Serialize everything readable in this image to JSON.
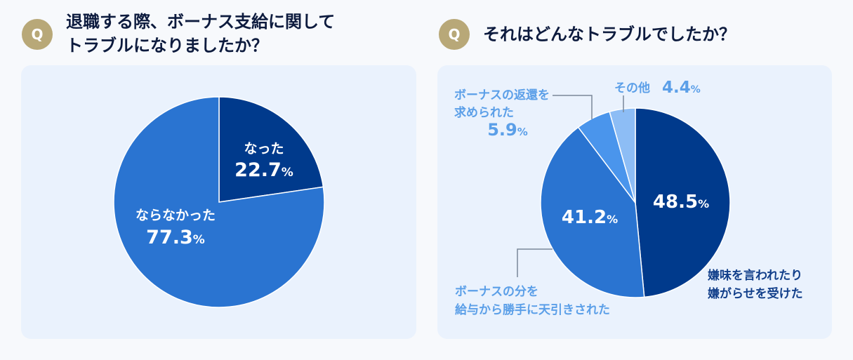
{
  "colors": {
    "badge": "#b8a878",
    "title": "#0d1b3e",
    "card": "#eaf2fd",
    "navy": "#003a8c",
    "mid_blue": "#2a74d1",
    "bright_blue": "#4a95ec",
    "light_blue": "#8dbdf5",
    "label_blue": "#5b9fe8",
    "label_navy": "#123f8a"
  },
  "q_badge": "Q",
  "left": {
    "title_line1": "退職する際、ボーナス支給に関して",
    "title_line2": "トラブルになりましたか？"
  },
  "right": {
    "title": "それはどんなトラブルでしたか？"
  },
  "percent_sign": "%",
  "chart_data": [
    {
      "type": "pie",
      "title": "退職する際、ボーナス支給に関してトラブルになりましたか？",
      "slices": [
        {
          "label": "なった",
          "value": 22.7,
          "value_text": "22.7",
          "color": "#003a8c"
        },
        {
          "label": "ならなかった",
          "value": 77.3,
          "value_text": "77.3",
          "color": "#2a74d1"
        }
      ]
    },
    {
      "type": "pie",
      "title": "それはどんなトラブルでしたか？",
      "slices": [
        {
          "label_lines": [
            "嫌味を言われたり",
            "嫌がらせを受けた"
          ],
          "value": 48.5,
          "value_text": "48.5",
          "color": "#003a8c"
        },
        {
          "label_lines": [
            "ボーナスの分を",
            "給与から勝手に天引きされた"
          ],
          "value": 41.2,
          "value_text": "41.2",
          "color": "#2a74d1"
        },
        {
          "label_lines": [
            "ボーナスの返還を",
            "求められた"
          ],
          "value": 5.9,
          "value_text": "5.9",
          "color": "#4a95ec"
        },
        {
          "label_lines": [
            "その他"
          ],
          "value": 4.4,
          "value_text": "4.4",
          "color": "#8dbdf5"
        }
      ]
    }
  ]
}
